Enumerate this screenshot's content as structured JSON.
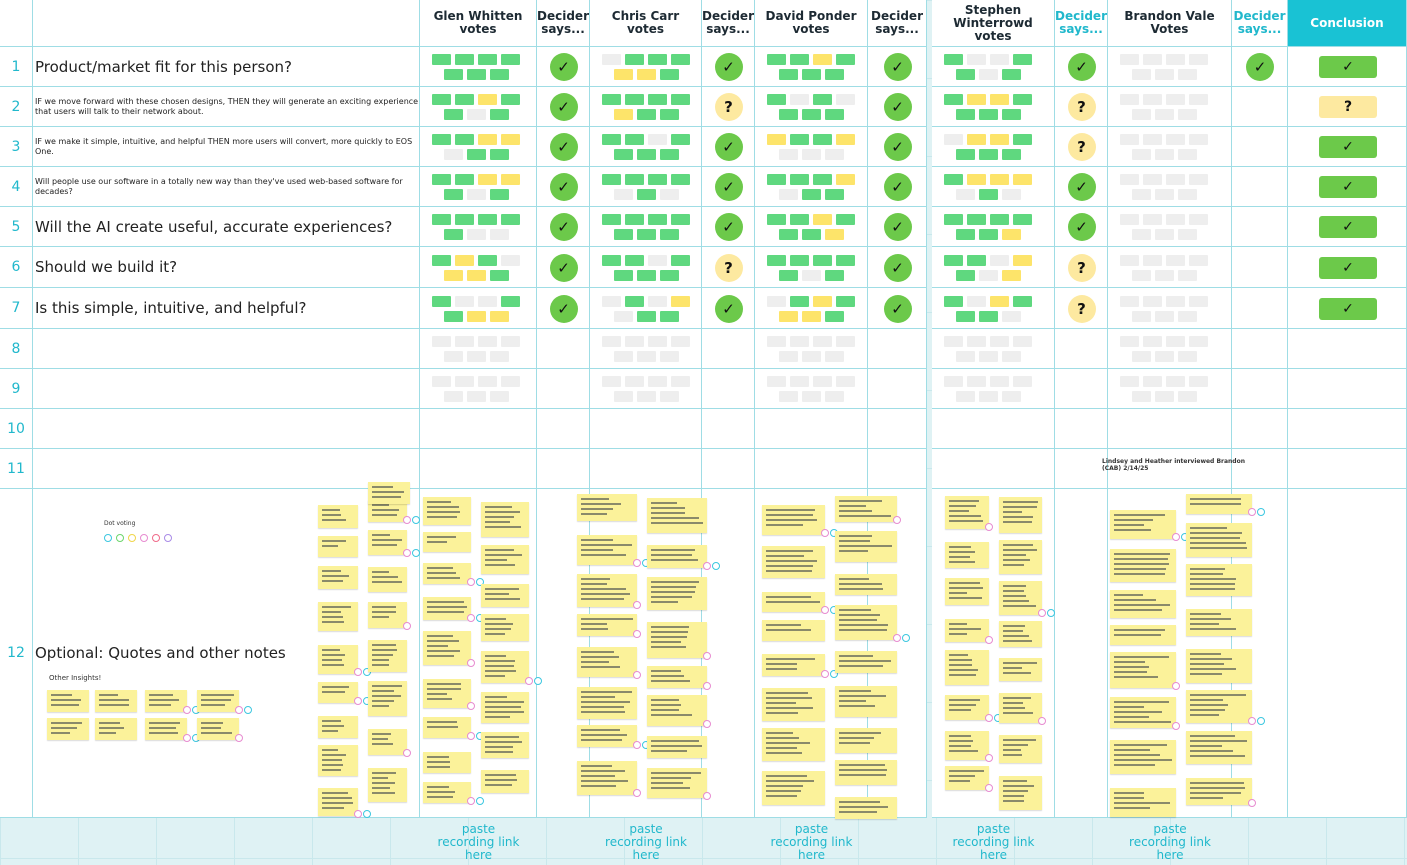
{
  "header": {
    "columns": [
      "Glen Whitten votes",
      "Decider says...",
      "Chris Carr votes",
      "Decider says...",
      "David Ponder votes",
      "Decider says...",
      "Stephen Winterrowd votes",
      "Decider says...",
      "Brandon Vale Votes",
      "Decider says...",
      "Conclusion"
    ]
  },
  "rows": [
    {
      "number": 1,
      "question": "Product/market fit for this person?",
      "verdicts": [
        "✓",
        "✓",
        "✓",
        "✓",
        "✓"
      ],
      "conclusion": "✓"
    },
    {
      "number": 2,
      "question": "IF we move forward with these chosen designs, THEN they will generate an exciting experience that users will talk to their network about.",
      "verdicts": [
        "✓",
        "?",
        "✓",
        "?",
        null
      ],
      "conclusion": "?"
    },
    {
      "number": 3,
      "question": "IF we make it simple, intuitive, and helpful THEN more users will convert, more quickly to EOS One.",
      "verdicts": [
        "✓",
        "✓",
        "✓",
        "?",
        null
      ],
      "conclusion": "✓"
    },
    {
      "number": 4,
      "question": "Will people use our software in a totally new way than they've used web-based software for decades?",
      "verdicts": [
        "✓",
        "✓",
        "✓",
        "✓",
        null
      ],
      "conclusion": "✓"
    },
    {
      "number": 5,
      "question": "Will the AI create useful, accurate experiences?",
      "verdicts": [
        "✓",
        "✓",
        "✓",
        "✓",
        null
      ],
      "conclusion": "✓"
    },
    {
      "number": 6,
      "question": "Should we build it?",
      "verdicts": [
        "✓",
        "?",
        "✓",
        "?",
        null
      ],
      "conclusion": "✓"
    },
    {
      "number": 7,
      "question": "Is this simple, intuitive, and helpful?",
      "verdicts": [
        "✓",
        "✓",
        "✓",
        "?",
        null
      ],
      "conclusion": "✓"
    },
    {
      "number": 8
    },
    {
      "number": 9
    },
    {
      "number": 10
    },
    {
      "number": 11
    },
    {
      "number": 12,
      "question": "Optional: Quotes and other notes"
    }
  ],
  "notes": {
    "dot_voting": "Dot voting",
    "other_insights": "Other Insights!",
    "interview": "Lindsey and Heather interviewed Brandon (CAB) 2/14/25"
  },
  "footer": [
    "paste recording link here",
    "paste recording link here",
    "paste recording link here",
    "paste recording link here",
    "paste recording link here"
  ]
}
